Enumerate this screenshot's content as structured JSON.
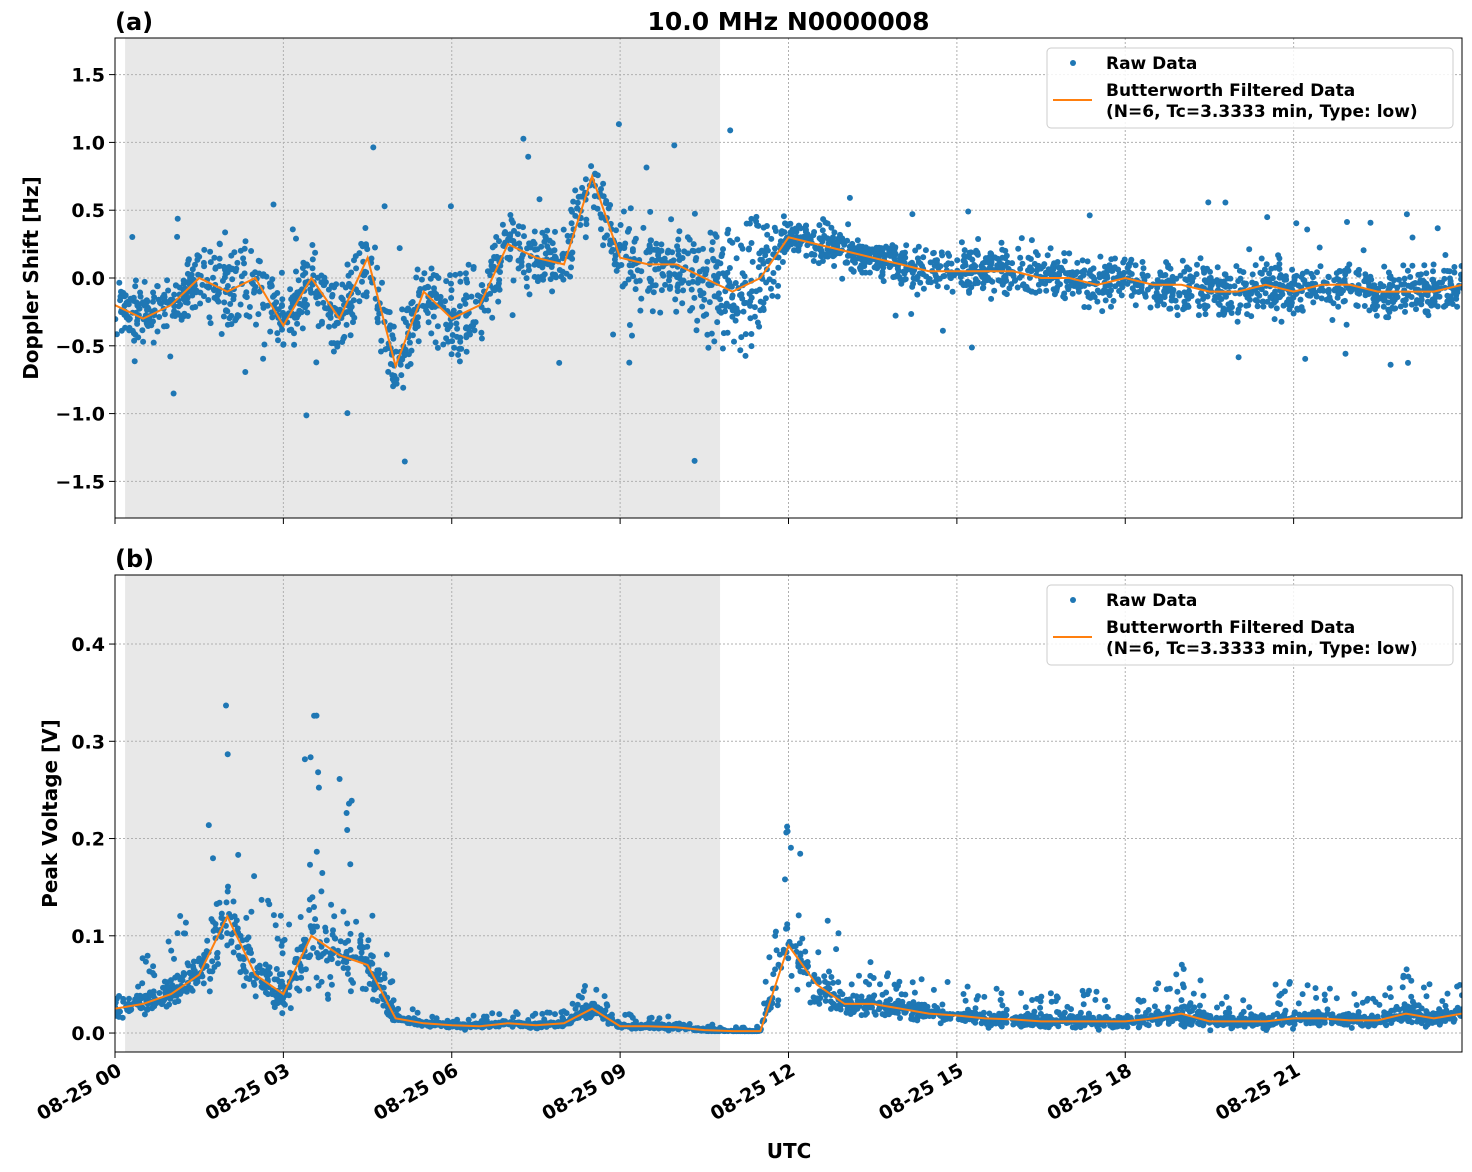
{
  "chart_data": [
    {
      "type": "scatter",
      "panel_label": "(a)",
      "title": "10.0 MHz N0000008",
      "xlabel": "",
      "ylabel": "Doppler Shift [Hz]",
      "xlim_hours": [
        0,
        24
      ],
      "ylim": [
        -1.77,
        1.77
      ],
      "yticks": [
        -1.5,
        -1.0,
        -0.5,
        0.0,
        0.5,
        1.0,
        1.5
      ],
      "ytick_labels": [
        "−1.5",
        "−1.0",
        "−0.5",
        "0.0",
        "0.5",
        "1.0",
        "1.5"
      ],
      "grid": true,
      "legend_position": "top-right",
      "shaded_region_hours": [
        0.18,
        10.78
      ],
      "x_hours": [
        0,
        0.5,
        1,
        1.5,
        2,
        2.5,
        3,
        3.5,
        4,
        4.5,
        5,
        5.5,
        6,
        6.5,
        7,
        7.5,
        8,
        8.5,
        9,
        9.5,
        10,
        10.5,
        11,
        11.5,
        12,
        12.5,
        13,
        13.5,
        14,
        14.5,
        15,
        15.5,
        16,
        16.5,
        17,
        17.5,
        18,
        18.5,
        19,
        19.5,
        20,
        20.5,
        21,
        21.5,
        22,
        22.5,
        23,
        23.5,
        24
      ],
      "series": [
        {
          "name": "Butterworth Filtered Data",
          "color": "#ff7f0e",
          "values": [
            -0.2,
            -0.3,
            -0.2,
            0.0,
            -0.1,
            0.0,
            -0.35,
            0.0,
            -0.3,
            0.15,
            -0.65,
            -0.1,
            -0.3,
            -0.2,
            0.25,
            0.15,
            0.1,
            0.75,
            0.15,
            0.1,
            0.1,
            0.0,
            -0.1,
            0.0,
            0.3,
            0.25,
            0.2,
            0.15,
            0.1,
            0.05,
            0.05,
            0.05,
            0.05,
            0.0,
            0.0,
            -0.05,
            0.0,
            -0.05,
            -0.05,
            -0.1,
            -0.1,
            -0.05,
            -0.1,
            -0.05,
            -0.05,
            -0.1,
            -0.1,
            -0.1,
            -0.05
          ]
        },
        {
          "name": "Raw Data",
          "color": "#1f77b4",
          "spread": [
            0.35,
            0.35,
            0.35,
            0.4,
            0.6,
            0.45,
            0.5,
            0.5,
            0.45,
            0.5,
            0.5,
            0.45,
            0.55,
            0.5,
            0.45,
            0.4,
            0.4,
            0.4,
            0.5,
            0.45,
            0.5,
            0.8,
            0.9,
            0.9,
            0.2,
            0.2,
            0.25,
            0.2,
            0.25,
            0.25,
            0.3,
            0.3,
            0.3,
            0.3,
            0.3,
            0.3,
            0.3,
            0.3,
            0.3,
            0.35,
            0.35,
            0.35,
            0.3,
            0.3,
            0.3,
            0.3,
            0.3,
            0.3,
            0.3
          ]
        }
      ]
    },
    {
      "type": "scatter",
      "panel_label": "(b)",
      "xlabel": "UTC",
      "ylabel": "Peak Voltage [V]",
      "xlim_hours": [
        0,
        24
      ],
      "ylim": [
        -0.0195,
        0.471
      ],
      "yticks": [
        0.0,
        0.1,
        0.2,
        0.3,
        0.4
      ],
      "ytick_labels": [
        "0.0",
        "0.1",
        "0.2",
        "0.3",
        "0.4"
      ],
      "xtick_labels": [
        "08-25 00",
        "08-25 03",
        "08-25 06",
        "08-25 09",
        "08-25 12",
        "08-25 15",
        "08-25 18",
        "08-25 21"
      ],
      "xtick_hours": [
        0,
        3,
        6,
        9,
        12,
        15,
        18,
        21
      ],
      "grid": true,
      "legend_position": "top-right",
      "shaded_region_hours": [
        0.18,
        10.78
      ],
      "x_hours": [
        0,
        0.5,
        1,
        1.5,
        2,
        2.5,
        3,
        3.5,
        4,
        4.5,
        5,
        5.5,
        6,
        6.5,
        7,
        7.5,
        8,
        8.5,
        9,
        9.5,
        10,
        10.5,
        11,
        11.5,
        12,
        12.5,
        13,
        13.5,
        14,
        14.5,
        15,
        15.5,
        16,
        16.5,
        17,
        17.5,
        18,
        18.5,
        19,
        19.5,
        20,
        20.5,
        21,
        21.5,
        22,
        22.5,
        23,
        23.5,
        24
      ],
      "series": [
        {
          "name": "Butterworth Filtered Data",
          "color": "#ff7f0e",
          "values": [
            0.025,
            0.03,
            0.04,
            0.06,
            0.12,
            0.06,
            0.04,
            0.1,
            0.08,
            0.07,
            0.015,
            0.01,
            0.008,
            0.007,
            0.01,
            0.008,
            0.01,
            0.025,
            0.007,
            0.007,
            0.006,
            0.003,
            0.002,
            0.002,
            0.09,
            0.05,
            0.03,
            0.03,
            0.025,
            0.02,
            0.018,
            0.015,
            0.014,
            0.012,
            0.012,
            0.012,
            0.012,
            0.015,
            0.02,
            0.012,
            0.012,
            0.012,
            0.015,
            0.015,
            0.013,
            0.013,
            0.02,
            0.015,
            0.02
          ]
        },
        {
          "name": "Raw Data",
          "color": "#1f77b4",
          "spread": [
            0.03,
            0.03,
            0.04,
            0.06,
            0.15,
            0.06,
            0.05,
            0.15,
            0.12,
            0.1,
            0.01,
            0.008,
            0.008,
            0.008,
            0.008,
            0.008,
            0.008,
            0.02,
            0.008,
            0.008,
            0.008,
            0.004,
            0.003,
            0.003,
            0.1,
            0.07,
            0.04,
            0.03,
            0.025,
            0.025,
            0.02,
            0.02,
            0.02,
            0.02,
            0.02,
            0.02,
            0.02,
            0.02,
            0.04,
            0.02,
            0.02,
            0.02,
            0.03,
            0.02,
            0.02,
            0.02,
            0.03,
            0.02,
            0.02
          ]
        }
      ]
    }
  ],
  "legend": {
    "raw": "Raw Data",
    "filtered_line1": "Butterworth Filtered Data",
    "filtered_line2": "(N=6, Tc=3.3333 min, Type: low)"
  }
}
